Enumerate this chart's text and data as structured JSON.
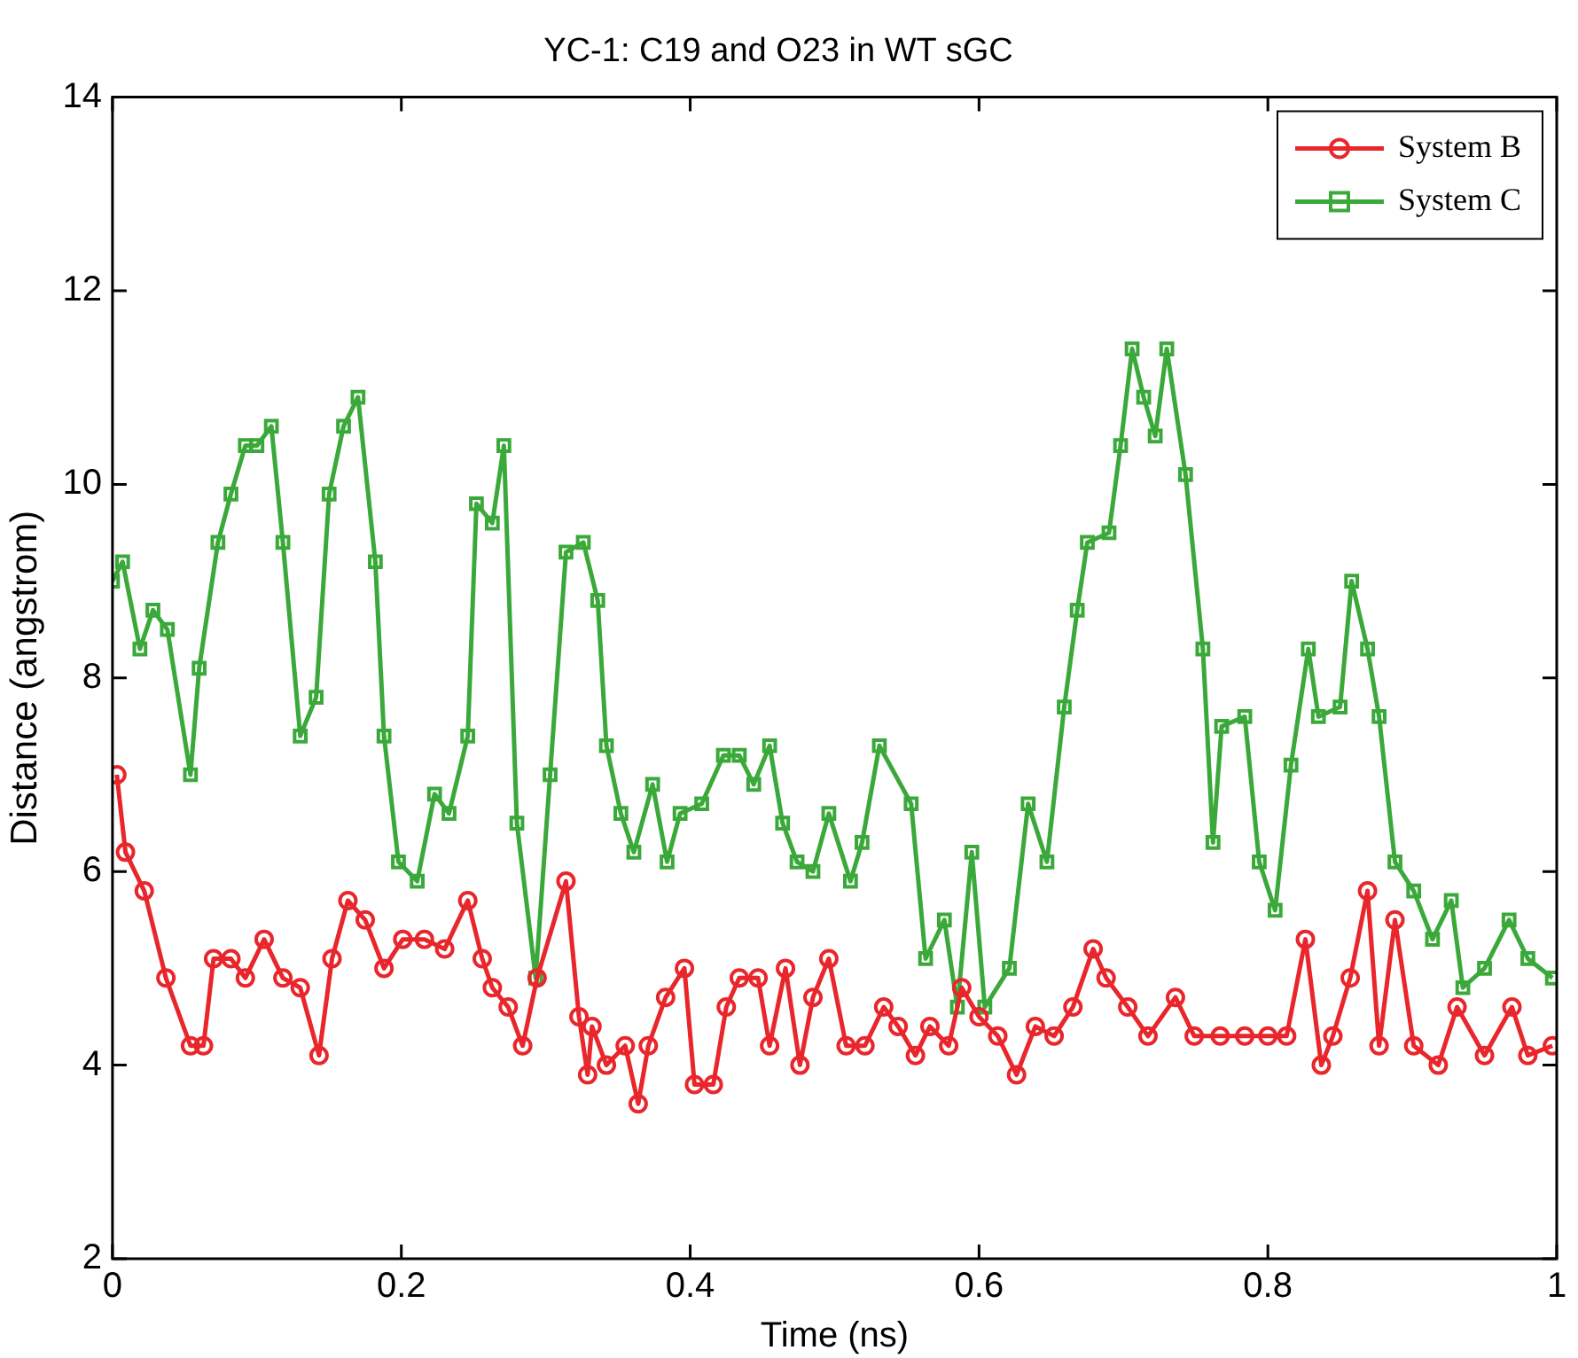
{
  "chart_data": {
    "type": "line",
    "title": "YC-1: C19 and O23 in WT sGC",
    "xlabel": "Time (ns)",
    "ylabel": "Distance (angstrom)",
    "xlim": [
      0,
      1
    ],
    "xticks": [
      0,
      0.2,
      0.4,
      0.6,
      0.8,
      1
    ],
    "ylim": [
      2,
      14
    ],
    "yticks": [
      2,
      4,
      6,
      8,
      10,
      12,
      14
    ],
    "grid": false,
    "legend": "top right",
    "line_style": "solid",
    "series": [
      {
        "name": "System B",
        "color": "#e8262b",
        "marker": "circle",
        "x": [
          0.003,
          0.009,
          0.022,
          0.037,
          0.054,
          0.063,
          0.07,
          0.082,
          0.092,
          0.105,
          0.118,
          0.13,
          0.143,
          0.152,
          0.163,
          0.175,
          0.188,
          0.201,
          0.216,
          0.23,
          0.246,
          0.256,
          0.263,
          0.274,
          0.284,
          0.294,
          0.314,
          0.323,
          0.329,
          0.332,
          0.342,
          0.355,
          0.364,
          0.371,
          0.383,
          0.396,
          0.403,
          0.416,
          0.425,
          0.434,
          0.447,
          0.455,
          0.466,
          0.476,
          0.485,
          0.496,
          0.508,
          0.521,
          0.534,
          0.544,
          0.556,
          0.566,
          0.579,
          0.588,
          0.6,
          0.613,
          0.626,
          0.639,
          0.652,
          0.665,
          0.679,
          0.688,
          0.703,
          0.717,
          0.736,
          0.749,
          0.767,
          0.784,
          0.8,
          0.813,
          0.826,
          0.837,
          0.845,
          0.857,
          0.869,
          0.877,
          0.888,
          0.901,
          0.918,
          0.931,
          0.95,
          0.969,
          0.98,
          0.997
        ],
        "values": [
          7.0,
          6.2,
          5.8,
          4.9,
          4.2,
          4.2,
          5.1,
          5.1,
          4.9,
          5.3,
          4.9,
          4.8,
          4.1,
          5.1,
          5.7,
          5.5,
          5.0,
          5.3,
          5.3,
          5.2,
          5.7,
          5.1,
          4.8,
          4.6,
          4.2,
          4.9,
          5.9,
          4.5,
          3.9,
          4.4,
          4.0,
          4.2,
          3.6,
          4.2,
          4.7,
          5.0,
          3.8,
          3.8,
          4.6,
          4.9,
          4.9,
          4.2,
          5.0,
          4.0,
          4.7,
          5.1,
          4.2,
          4.2,
          4.6,
          4.4,
          4.1,
          4.4,
          4.2,
          4.8,
          4.5,
          4.3,
          3.9,
          4.4,
          4.3,
          4.6,
          5.2,
          4.9,
          4.6,
          4.3,
          4.7,
          4.3,
          4.3,
          4.3,
          4.3,
          4.3,
          5.3,
          4.0,
          4.3,
          4.9,
          5.8,
          4.2,
          5.5,
          4.2,
          4.0,
          4.6,
          4.1,
          4.6,
          4.1,
          4.2
        ]
      },
      {
        "name": "System C",
        "color": "#3aa93a",
        "marker": "square",
        "x": [
          0,
          0.007,
          0.019,
          0.028,
          0.038,
          0.054,
          0.06,
          0.073,
          0.082,
          0.092,
          0.1,
          0.11,
          0.118,
          0.13,
          0.141,
          0.15,
          0.16,
          0.17,
          0.182,
          0.188,
          0.198,
          0.211,
          0.223,
          0.233,
          0.246,
          0.252,
          0.263,
          0.271,
          0.28,
          0.293,
          0.303,
          0.314,
          0.326,
          0.336,
          0.342,
          0.352,
          0.361,
          0.374,
          0.384,
          0.393,
          0.408,
          0.423,
          0.434,
          0.444,
          0.455,
          0.464,
          0.474,
          0.485,
          0.496,
          0.511,
          0.519,
          0.531,
          0.553,
          0.563,
          0.576,
          0.585,
          0.595,
          0.604,
          0.621,
          0.634,
          0.647,
          0.659,
          0.668,
          0.675,
          0.69,
          0.698,
          0.706,
          0.714,
          0.722,
          0.73,
          0.743,
          0.755,
          0.762,
          0.768,
          0.784,
          0.794,
          0.805,
          0.816,
          0.828,
          0.835,
          0.85,
          0.858,
          0.869,
          0.877,
          0.888,
          0.901,
          0.914,
          0.927,
          0.935,
          0.95,
          0.967,
          0.98,
          0.997
        ],
        "values": [
          9.0,
          9.2,
          8.3,
          8.7,
          8.5,
          7.0,
          8.1,
          9.4,
          9.9,
          10.4,
          10.4,
          10.6,
          9.4,
          7.4,
          7.8,
          9.9,
          10.6,
          10.9,
          9.2,
          7.4,
          6.1,
          5.9,
          6.8,
          6.6,
          7.4,
          9.8,
          9.6,
          10.4,
          6.5,
          4.9,
          7.0,
          9.3,
          9.4,
          8.8,
          7.3,
          6.6,
          6.2,
          6.9,
          6.1,
          6.6,
          6.7,
          7.2,
          7.2,
          6.9,
          7.3,
          6.5,
          6.1,
          6.0,
          6.6,
          5.9,
          6.3,
          7.3,
          6.7,
          5.1,
          5.5,
          4.6,
          6.2,
          4.6,
          5.0,
          6.7,
          6.1,
          7.7,
          8.7,
          9.4,
          9.5,
          10.4,
          11.4,
          10.9,
          10.5,
          11.4,
          10.1,
          8.3,
          6.3,
          7.5,
          7.6,
          6.1,
          5.6,
          7.1,
          8.3,
          7.6,
          7.7,
          9.0,
          8.3,
          7.6,
          6.1,
          5.8,
          5.3,
          5.7,
          4.8,
          5.0,
          5.5,
          5.1,
          4.9
        ]
      }
    ]
  }
}
